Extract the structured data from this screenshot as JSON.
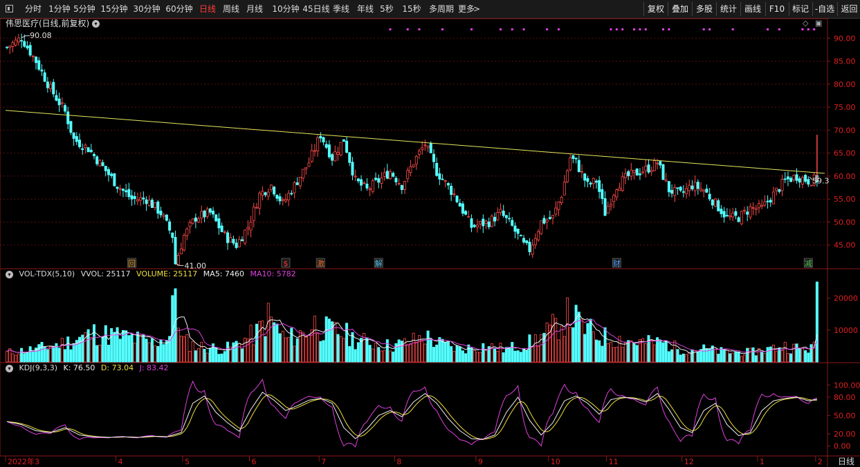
{
  "toolbar": {
    "periods": [
      "分时",
      "1分钟",
      "5分钟",
      "15分钟",
      "30分钟",
      "60分钟",
      "日线",
      "周线",
      "月线",
      "10分钟",
      "45日线",
      "季线",
      "年线",
      "5秒",
      "15秒",
      "多周期",
      "更多"
    ],
    "active_period": "日线",
    "right_buttons": [
      "复权",
      "叠加",
      "多股",
      "统计",
      "画线",
      "F10",
      "标记",
      "-自选",
      "返回"
    ]
  },
  "main_chart": {
    "title": "伟思医疗(日线,前复权)",
    "high_label": "90.08",
    "low_label": "41.00",
    "last_price_label": "59.3",
    "y_ticks": [
      "90.00",
      "85.00",
      "80.00",
      "75.00",
      "70.00",
      "65.00",
      "60.00",
      "55.00",
      "50.00",
      "45.00"
    ],
    "event_markers": [
      {
        "text": "回",
        "color": "#e0a030",
        "date_index": 43
      },
      {
        "text": "$",
        "color": "#ff3030",
        "date_index": 96
      },
      {
        "text": "激",
        "color": "#e07030",
        "date_index": 108
      },
      {
        "text": "解",
        "color": "#50c0e0",
        "date_index": 128
      },
      {
        "text": "财",
        "color": "#50a0ff",
        "date_index": 210
      },
      {
        "text": "减",
        "color": "#50c050",
        "date_index": 276
      }
    ]
  },
  "volume_panel": {
    "indicator": "VOL-TDX(5,10)",
    "vvol": "VVOL: 25117",
    "volume": "VOLUME: 25117",
    "ma5": "MA5: 7460",
    "ma10": "MA10: 5782",
    "y_ticks": [
      "20000",
      "10000"
    ]
  },
  "kdj_panel": {
    "indicator": "KDJ(9,3,3)",
    "k": "K: 76.50",
    "d": "D: 73.04",
    "j": "J: 83.42",
    "y_ticks": [
      "100.00",
      "80.00",
      "50.00",
      "20.00",
      "0.00"
    ]
  },
  "x_axis": {
    "labels": [
      {
        "text": "2022年3",
        "date_index": 0
      },
      {
        "text": "4",
        "date_index": 38
      },
      {
        "text": "5",
        "date_index": 61
      },
      {
        "text": "6",
        "date_index": 84
      },
      {
        "text": "7",
        "date_index": 108
      },
      {
        "text": "8",
        "date_index": 134
      },
      {
        "text": "9",
        "date_index": 162
      },
      {
        "text": "10",
        "date_index": 187
      },
      {
        "text": "11",
        "date_index": 207
      },
      {
        "text": "12",
        "date_index": 233
      },
      {
        "text": "1",
        "date_index": 259
      },
      {
        "text": "2",
        "date_index": 279
      }
    ],
    "period_label": "日线"
  },
  "chart_data": {
    "type": "candlestick",
    "title": "伟思医疗(日线,前复权)",
    "ylim_price": [
      40,
      92
    ],
    "price_keypoints": [
      [
        0,
        88
      ],
      [
        5,
        90.08
      ],
      [
        10,
        85
      ],
      [
        15,
        79
      ],
      [
        20,
        74
      ],
      [
        23,
        68
      ],
      [
        28,
        66
      ],
      [
        33,
        62
      ],
      [
        38,
        58
      ],
      [
        43,
        55
      ],
      [
        48,
        55
      ],
      [
        53,
        52
      ],
      [
        57,
        47
      ],
      [
        58,
        41
      ],
      [
        61,
        47
      ],
      [
        65,
        51
      ],
      [
        70,
        52
      ],
      [
        75,
        47
      ],
      [
        79,
        45
      ],
      [
        83,
        49
      ],
      [
        87,
        56
      ],
      [
        91,
        58
      ],
      [
        95,
        54
      ],
      [
        99,
        58
      ],
      [
        104,
        63
      ],
      [
        108,
        69
      ],
      [
        112,
        64
      ],
      [
        116,
        68
      ],
      [
        120,
        59
      ],
      [
        124,
        57
      ],
      [
        128,
        59
      ],
      [
        132,
        61
      ],
      [
        136,
        58
      ],
      [
        140,
        63
      ],
      [
        144,
        67
      ],
      [
        148,
        61
      ],
      [
        154,
        56
      ],
      [
        160,
        49
      ],
      [
        166,
        50
      ],
      [
        170,
        52
      ],
      [
        174,
        49
      ],
      [
        178,
        45
      ],
      [
        180,
        44
      ],
      [
        184,
        50
      ],
      [
        188,
        51
      ],
      [
        191,
        56
      ],
      [
        194,
        64
      ],
      [
        196,
        63
      ],
      [
        200,
        58
      ],
      [
        203,
        59
      ],
      [
        206,
        52
      ],
      [
        210,
        58
      ],
      [
        214,
        60
      ],
      [
        218,
        61
      ],
      [
        222,
        62
      ],
      [
        224,
        63
      ],
      [
        228,
        57
      ],
      [
        232,
        56
      ],
      [
        236,
        58
      ],
      [
        240,
        57
      ],
      [
        244,
        54
      ],
      [
        248,
        51
      ],
      [
        252,
        51
      ],
      [
        256,
        53
      ],
      [
        260,
        53
      ],
      [
        264,
        56
      ],
      [
        268,
        59
      ],
      [
        272,
        60
      ],
      [
        276,
        59
      ],
      [
        279,
        59.3
      ]
    ],
    "volume_keypoints": [
      [
        0,
        3000
      ],
      [
        10,
        4000
      ],
      [
        20,
        6000
      ],
      [
        30,
        9000
      ],
      [
        40,
        8000
      ],
      [
        50,
        6000
      ],
      [
        56,
        8000
      ],
      [
        58,
        23000
      ],
      [
        60,
        7000
      ],
      [
        65,
        5000
      ],
      [
        75,
        4000
      ],
      [
        80,
        6000
      ],
      [
        86,
        9000
      ],
      [
        90,
        14000
      ],
      [
        96,
        7000
      ],
      [
        102,
        9000
      ],
      [
        106,
        12000
      ],
      [
        110,
        10000
      ],
      [
        116,
        9000
      ],
      [
        120,
        7000
      ],
      [
        126,
        6000
      ],
      [
        132,
        5000
      ],
      [
        138,
        6000
      ],
      [
        144,
        8000
      ],
      [
        148,
        6000
      ],
      [
        156,
        4000
      ],
      [
        164,
        5000
      ],
      [
        172,
        4000
      ],
      [
        180,
        6000
      ],
      [
        186,
        9000
      ],
      [
        190,
        12000
      ],
      [
        194,
        15000
      ],
      [
        198,
        11000
      ],
      [
        204,
        8000
      ],
      [
        212,
        7000
      ],
      [
        220,
        6000
      ],
      [
        226,
        6000
      ],
      [
        232,
        4000
      ],
      [
        240,
        4000
      ],
      [
        248,
        3000
      ],
      [
        256,
        3000
      ],
      [
        262,
        4000
      ],
      [
        268,
        5000
      ],
      [
        274,
        4000
      ],
      [
        278,
        4500
      ],
      [
        279,
        25117
      ]
    ],
    "kdj_keypoints": [
      [
        0,
        40
      ],
      [
        5,
        35
      ],
      [
        10,
        25
      ],
      [
        15,
        22
      ],
      [
        20,
        30
      ],
      [
        25,
        18
      ],
      [
        30,
        15
      ],
      [
        35,
        14
      ],
      [
        40,
        15
      ],
      [
        45,
        14
      ],
      [
        50,
        16
      ],
      [
        55,
        15
      ],
      [
        60,
        22
      ],
      [
        64,
        70
      ],
      [
        68,
        82
      ],
      [
        72,
        55
      ],
      [
        76,
        38
      ],
      [
        80,
        24
      ],
      [
        84,
        60
      ],
      [
        88,
        88
      ],
      [
        92,
        75
      ],
      [
        96,
        58
      ],
      [
        100,
        66
      ],
      [
        104,
        75
      ],
      [
        108,
        78
      ],
      [
        112,
        70
      ],
      [
        116,
        30
      ],
      [
        120,
        12
      ],
      [
        124,
        28
      ],
      [
        128,
        50
      ],
      [
        132,
        58
      ],
      [
        136,
        48
      ],
      [
        140,
        72
      ],
      [
        144,
        86
      ],
      [
        148,
        70
      ],
      [
        152,
        45
      ],
      [
        156,
        25
      ],
      [
        160,
        12
      ],
      [
        164,
        11
      ],
      [
        168,
        18
      ],
      [
        172,
        55
      ],
      [
        176,
        80
      ],
      [
        180,
        42
      ],
      [
        184,
        18
      ],
      [
        188,
        38
      ],
      [
        192,
        74
      ],
      [
        196,
        82
      ],
      [
        200,
        70
      ],
      [
        204,
        52
      ],
      [
        208,
        76
      ],
      [
        212,
        80
      ],
      [
        216,
        78
      ],
      [
        220,
        72
      ],
      [
        224,
        86
      ],
      [
        228,
        60
      ],
      [
        232,
        30
      ],
      [
        236,
        22
      ],
      [
        240,
        58
      ],
      [
        244,
        70
      ],
      [
        248,
        35
      ],
      [
        252,
        17
      ],
      [
        256,
        22
      ],
      [
        260,
        58
      ],
      [
        264,
        74
      ],
      [
        268,
        78
      ],
      [
        272,
        80
      ],
      [
        276,
        74
      ],
      [
        279,
        76.5
      ]
    ]
  }
}
